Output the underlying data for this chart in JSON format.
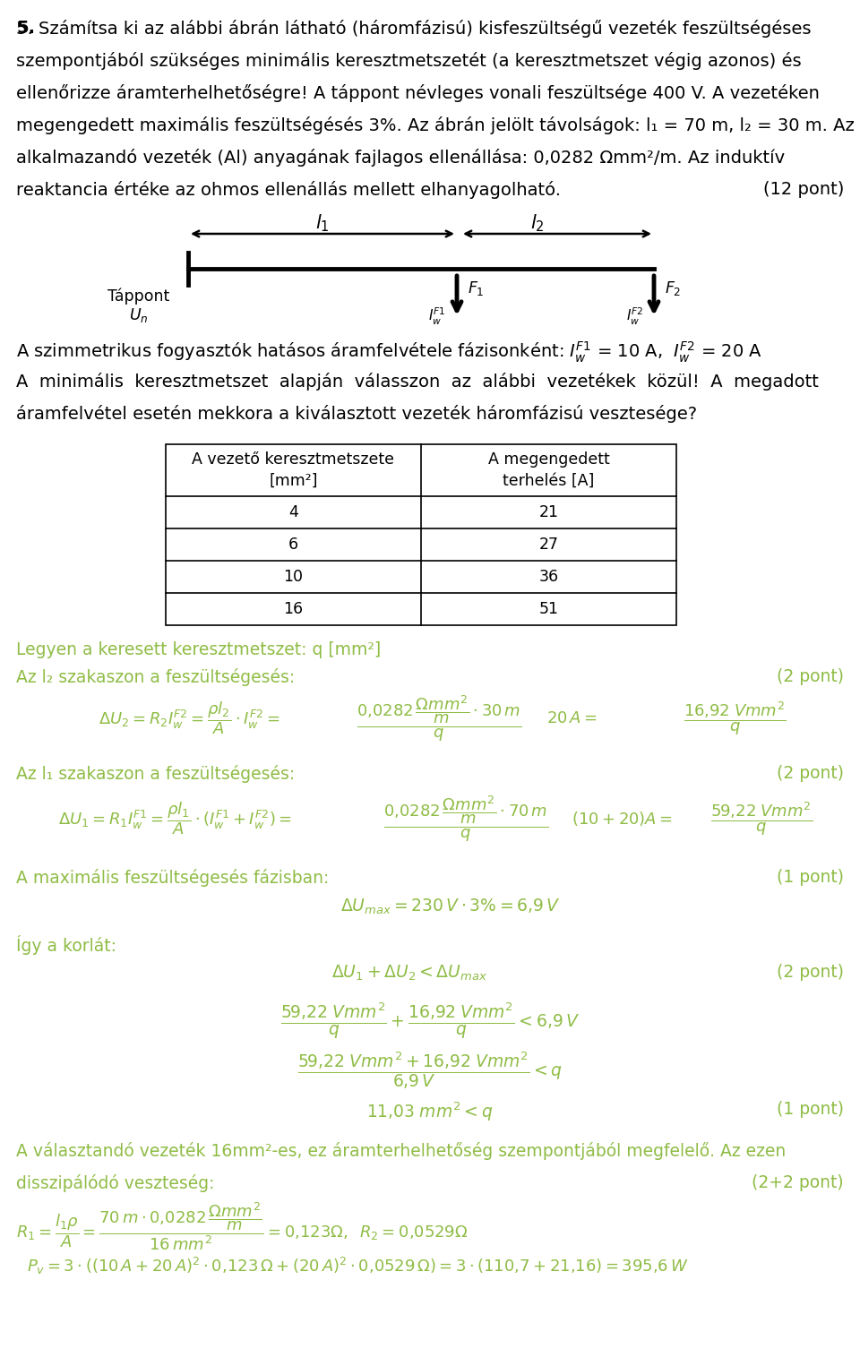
{
  "black_color": "#000000",
  "solution_color": "#8fbc45",
  "bg_color": "#ffffff",
  "intro_lines": [
    "5. Számítsa ki az alábbi ábrán látható (háromfázisú) kisfeszültségű vezeték feszültségéses",
    "szempontjából szükséges minimális keresztmetszetét (a keresztmetszet végig azonos) és",
    "ellenőrizze áramterhelhetőségre! A táppont névleges vonali feszültsége 400 V. A vezetéken",
    "megengedett maximális feszültségésés 3%. Az ábrán jelölt távolságok: l₁ = 70 m, l₂ = 30 m. Az",
    "alkalmazandó vezeték (Al) anyagának fajlagos ellenállása: 0,0282 Ωmm²/m. Az induktív",
    "reaktancia értéke az ohmos ellenállás mellett elhanyagolható."
  ],
  "table_data": [
    [
      4,
      21
    ],
    [
      6,
      27
    ],
    [
      10,
      36
    ],
    [
      16,
      51
    ]
  ]
}
